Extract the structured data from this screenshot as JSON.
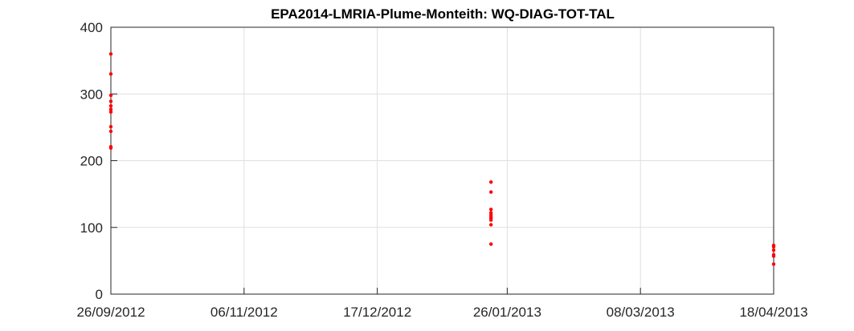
{
  "chart_data": {
    "type": "scatter",
    "title": "EPA2014-LMRIA-Plume-Monteith: WQ-DIAG-TOT-TAL",
    "xlabel": "",
    "ylabel": "",
    "x_type": "date",
    "xlim": [
      "2012-09-26",
      "2013-04-18"
    ],
    "ylim": [
      0,
      400
    ],
    "x_ticks": [
      "2012-09-26",
      "2012-11-06",
      "2012-12-17",
      "2013-01-26",
      "2013-03-08",
      "2013-04-18"
    ],
    "x_tick_labels": [
      "26/09/2012",
      "06/11/2012",
      "17/12/2012",
      "26/01/2013",
      "08/03/2013",
      "18/04/2013"
    ],
    "y_ticks": [
      0,
      100,
      200,
      300,
      400
    ],
    "y_tick_labels": [
      "0",
      "100",
      "200",
      "300",
      "400"
    ],
    "grid": true,
    "legend": "none",
    "marker_color": "#ff0000",
    "series": [
      {
        "points": [
          {
            "x": "2012-09-26",
            "y": 360
          },
          {
            "x": "2012-09-26",
            "y": 330
          },
          {
            "x": "2012-09-26",
            "y": 298
          },
          {
            "x": "2012-09-26",
            "y": 289
          },
          {
            "x": "2012-09-26",
            "y": 282
          },
          {
            "x": "2012-09-26",
            "y": 277
          },
          {
            "x": "2012-09-26",
            "y": 273
          },
          {
            "x": "2012-09-26",
            "y": 251
          },
          {
            "x": "2012-09-26",
            "y": 244
          },
          {
            "x": "2012-09-26",
            "y": 221
          },
          {
            "x": "2012-09-26",
            "y": 219
          },
          {
            "x": "2013-01-21",
            "y": 168
          },
          {
            "x": "2013-01-21",
            "y": 153
          },
          {
            "x": "2013-01-21",
            "y": 127
          },
          {
            "x": "2013-01-21",
            "y": 122
          },
          {
            "x": "2013-01-21",
            "y": 119
          },
          {
            "x": "2013-01-21",
            "y": 116
          },
          {
            "x": "2013-01-21",
            "y": 114
          },
          {
            "x": "2013-01-21",
            "y": 111
          },
          {
            "x": "2013-01-21",
            "y": 104
          },
          {
            "x": "2013-01-21",
            "y": 75
          },
          {
            "x": "2013-04-18",
            "y": 73
          },
          {
            "x": "2013-04-18",
            "y": 71
          },
          {
            "x": "2013-04-18",
            "y": 66
          },
          {
            "x": "2013-04-18",
            "y": 59
          },
          {
            "x": "2013-04-18",
            "y": 57
          },
          {
            "x": "2013-04-18",
            "y": 45
          }
        ]
      }
    ]
  }
}
